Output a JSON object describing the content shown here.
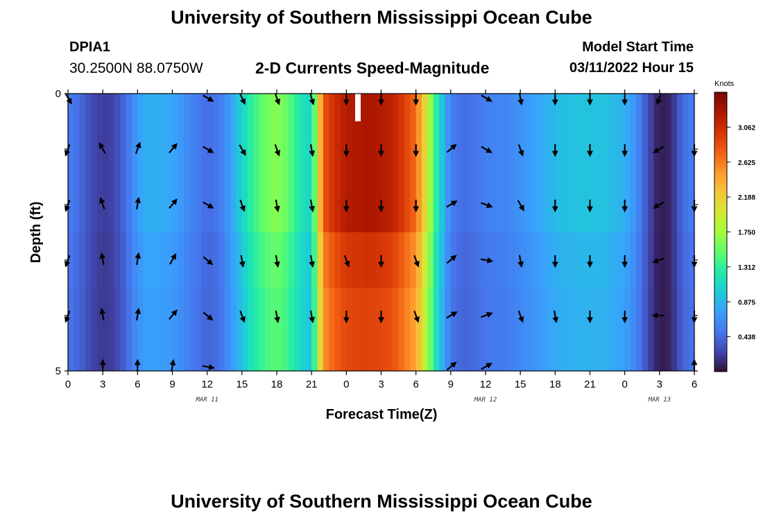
{
  "header": {
    "title": "University of Southern Mississippi Ocean Cube",
    "station_id": "DPIA1",
    "coords": "30.2500N  88.0750W",
    "chart_title": "2-D Currents Speed-Magnitude",
    "model_start_label": "Model Start Time",
    "model_start_value": "03/11/2022 Hour 15"
  },
  "footer": {
    "title": "University of Southern Mississippi Ocean Cube"
  },
  "chart_data": {
    "type": "heatmap",
    "title": "2-D Currents Speed-Magnitude",
    "xlabel": "Forecast Time(Z)",
    "ylabel": "Depth (ft)",
    "x_tick_labels": [
      "0",
      "3",
      "6",
      "9",
      "12",
      "15",
      "18",
      "21",
      "0",
      "3",
      "6",
      "9",
      "12",
      "15",
      "18",
      "21",
      "0",
      "3",
      "6"
    ],
    "date_labels": [
      {
        "label": "MAR 11",
        "hour": 12
      },
      {
        "label": "MAR 12",
        "hour": 36
      },
      {
        "label": "MAR 13",
        "hour": 51
      }
    ],
    "y_tick_labels": [
      {
        "label": "0",
        "depth": 0
      },
      {
        "label": "5",
        "depth": 5
      }
    ],
    "ylim": [
      0,
      5
    ],
    "xlim_hours": [
      0,
      54
    ],
    "colorbar": {
      "label": "Knots",
      "ticks": [
        "3.062",
        "2.625",
        "2.188",
        "1.750",
        "1.312",
        "0.875",
        "0.438"
      ],
      "range": [
        0,
        3.5
      ]
    },
    "speed_profile": {
      "hours": [
        0,
        1,
        2,
        3,
        4,
        5,
        6,
        7,
        9,
        11,
        12,
        13,
        14,
        15,
        16,
        17,
        18,
        19,
        20,
        21,
        22,
        23,
        24,
        26,
        28,
        30,
        31,
        31.5,
        32,
        33,
        34,
        35,
        36,
        38,
        40,
        42,
        44,
        46,
        48,
        49,
        50,
        50.5,
        51,
        52,
        52.5,
        53,
        54
      ],
      "knots": [
        0.55,
        0.45,
        0.28,
        0.2,
        0.25,
        0.45,
        0.75,
        0.85,
        0.8,
        0.55,
        0.45,
        0.5,
        0.75,
        1.05,
        1.35,
        1.55,
        1.65,
        1.5,
        1.2,
        1.05,
        2.8,
        3.05,
        3.2,
        3.25,
        3.15,
        2.7,
        1.95,
        1.45,
        1.1,
        0.55,
        0.45,
        0.48,
        0.55,
        0.6,
        0.75,
        0.9,
        0.95,
        0.95,
        0.85,
        0.65,
        0.3,
        0.15,
        0.05,
        0.1,
        0.3,
        0.45,
        0.55
      ],
      "depth_factor": [
        1.0,
        1.0,
        1.0,
        0.93,
        0.9,
        0.9
      ]
    },
    "arrows": {
      "hours": [
        0,
        3,
        6,
        9,
        12,
        15,
        18,
        21,
        24,
        27,
        30,
        33,
        36,
        39,
        42,
        45,
        48,
        51,
        54
      ],
      "depth_rows": [
        0,
        1,
        2,
        3,
        4,
        5
      ],
      "directions_deg": [
        [
          150,
          null,
          null,
          null,
          120,
          155,
          160,
          165,
          180,
          180,
          180,
          null,
          120,
          170,
          180,
          180,
          180,
          200,
          null
        ],
        [
          200,
          -30,
          20,
          40,
          120,
          150,
          160,
          170,
          180,
          180,
          180,
          50,
          120,
          160,
          180,
          180,
          180,
          240,
          180
        ],
        [
          200,
          -20,
          10,
          40,
          120,
          160,
          170,
          170,
          180,
          180,
          180,
          60,
          110,
          150,
          180,
          180,
          180,
          240,
          180
        ],
        [
          200,
          -10,
          10,
          30,
          130,
          170,
          170,
          170,
          160,
          180,
          160,
          50,
          100,
          170,
          180,
          180,
          180,
          250,
          180
        ],
        [
          200,
          -10,
          10,
          40,
          130,
          160,
          170,
          170,
          180,
          180,
          160,
          60,
          70,
          160,
          170,
          180,
          180,
          270,
          180
        ],
        [
          null,
          0,
          0,
          10,
          100,
          null,
          null,
          null,
          null,
          null,
          null,
          50,
          60,
          null,
          null,
          null,
          null,
          null,
          0
        ]
      ]
    }
  }
}
